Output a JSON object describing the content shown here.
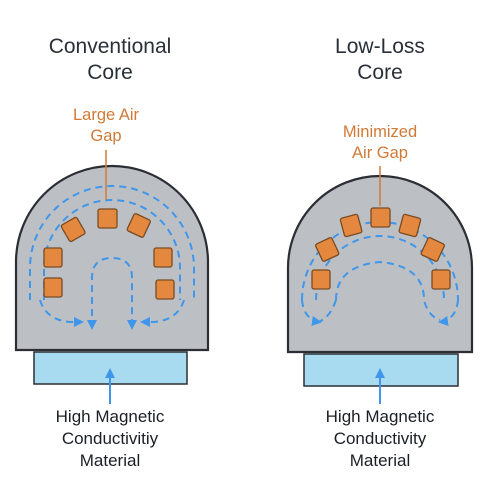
{
  "colors": {
    "core_fill": "#bcc0c4",
    "core_stroke": "#2b2f35",
    "flux": "#3f96ea",
    "winding_fill": "#e4883f",
    "winding_stroke": "#7a4b24",
    "base_fill": "#a9dbf0",
    "title_text": "#2a3038",
    "gap_label_text": "#d07a37"
  },
  "panels": [
    {
      "id": "conventional",
      "title": [
        "Conventional",
        "Core"
      ],
      "gap_label": [
        "Large Air",
        "Gap"
      ],
      "material_label": [
        "High Magnetic",
        "Conductivitiy",
        "Material"
      ]
    },
    {
      "id": "low-loss",
      "title": [
        "Low-Loss",
        "Core"
      ],
      "gap_label": [
        "Minimized",
        "Air Gap"
      ],
      "material_label": [
        "High Magnetic",
        "Conductivity",
        "Material"
      ]
    }
  ]
}
